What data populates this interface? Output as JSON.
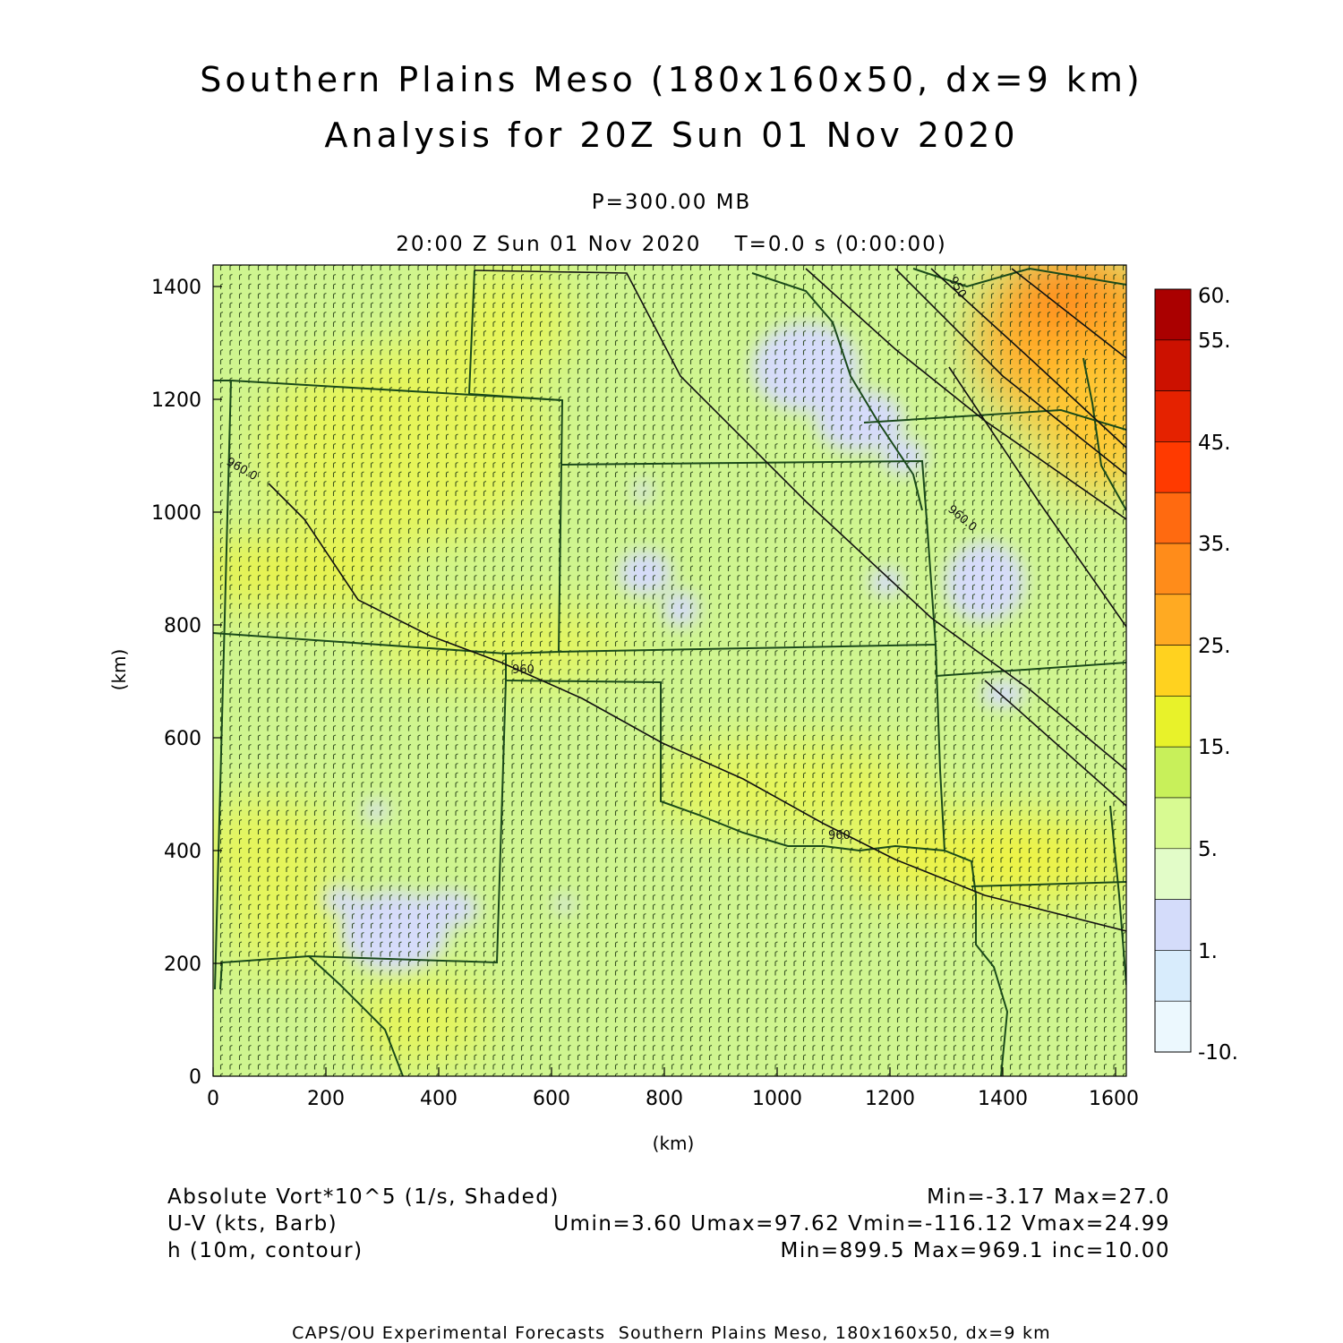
{
  "title": {
    "line1": "Southern Plains Meso (180x160x50, dx=9 km)",
    "line2": "Analysis for 20Z Sun 01 Nov 2020"
  },
  "level": "P=300.00 MB",
  "time_line": "20:00 Z Sun 01 Nov 2020    T=0.0 s (0:00:00)",
  "axes": {
    "x_label": "(km)",
    "y_label": "(km)",
    "x_ticks": [
      "0",
      "200",
      "400",
      "600",
      "800",
      "1000",
      "1200",
      "1400",
      "1600"
    ],
    "y_ticks": [
      "0",
      "200",
      "400",
      "600",
      "800",
      "1000",
      "1200",
      "1400"
    ]
  },
  "colorbar": {
    "labels": [
      "60.",
      "55.",
      "45.",
      "35.",
      "25.",
      "15.",
      "5.",
      "1.",
      "-10."
    ],
    "colors": [
      "#aa0000",
      "#cc1100",
      "#e52200",
      "#ff3a00",
      "#ff6a10",
      "#ff8c1a",
      "#ffaa22",
      "#ffd21f",
      "#e8f22a",
      "#c8f05a",
      "#d8fa92",
      "#e2fcc8",
      "#d4dcfa",
      "#d8ecfc",
      "#ecf8fe"
    ]
  },
  "contour_labels": [
    "960.0",
    "960",
    "960",
    "960.0",
    "950"
  ],
  "legend": {
    "field1": "Absolute Vort*10^5 (1/s, Shaded)",
    "field1_stats": "Min=-3.17 Max=27.0",
    "field2": "U-V (kts, Barb)",
    "field2_stats": "Umin=3.60 Umax=97.62 Vmin=-116.12 Vmax=24.99",
    "field3": "h (10m, contour)",
    "field3_stats": "Min=899.5 Max=969.1 inc=10.00"
  },
  "footer": "CAPS/OU Experimental Forecasts  Southern Plains Meso, 180x160x50, dx=9 km"
}
